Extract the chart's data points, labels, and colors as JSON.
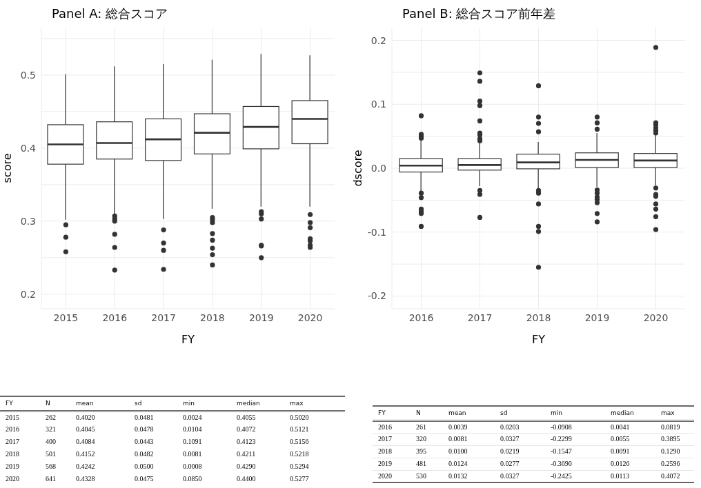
{
  "chart_data": [
    {
      "type": "box",
      "title": "Panel A: 総合スコア",
      "xlabel": "FY",
      "ylabel": "score",
      "color": "#333333",
      "grid": true,
      "categories": [
        "2015",
        "2016",
        "2017",
        "2018",
        "2019",
        "2020"
      ],
      "ylim": [
        0.18,
        0.565
      ],
      "yticks": [
        0.2,
        {
          "value": 0.25,
          "label": null
        },
        0.3,
        {
          "value": 0.35,
          "label": null
        },
        0.4,
        {
          "value": 0.45,
          "label": null
        },
        0.5,
        {
          "value": 0.55,
          "label": null
        }
      ],
      "boxes": [
        {
          "low": 0.302,
          "q1": 0.378,
          "median": 0.405,
          "q3": 0.432,
          "high": 0.501,
          "outliers": [
            0.295,
            0.278,
            0.258
          ]
        },
        {
          "low": 0.31,
          "q1": 0.385,
          "median": 0.407,
          "q3": 0.436,
          "high": 0.512,
          "outliers": [
            0.307,
            0.303,
            0.3,
            0.282,
            0.264,
            0.233
          ]
        },
        {
          "low": 0.303,
          "q1": 0.383,
          "median": 0.412,
          "q3": 0.44,
          "high": 0.515,
          "outliers": [
            0.288,
            0.27,
            0.26,
            0.234
          ]
        },
        {
          "low": 0.317,
          "q1": 0.392,
          "median": 0.421,
          "q3": 0.447,
          "high": 0.521,
          "outliers": [
            0.305,
            0.302,
            0.298,
            0.283,
            0.274,
            0.263,
            0.254,
            0.24
          ]
        },
        {
          "low": 0.32,
          "q1": 0.399,
          "median": 0.429,
          "q3": 0.457,
          "high": 0.529,
          "outliers": [
            0.313,
            0.31,
            0.303,
            0.267,
            0.266,
            0.25
          ]
        },
        {
          "low": 0.32,
          "q1": 0.406,
          "median": 0.44,
          "q3": 0.465,
          "high": 0.527,
          "outliers": [
            0.309,
            0.298,
            0.291,
            0.276,
            0.273,
            0.267,
            0.264
          ]
        }
      ],
      "annotations": [
        "FY",
        "N",
        "mean",
        "sd",
        "min",
        "median",
        "max",
        "2015",
        "262",
        "0.4020",
        "0.0481",
        "0.0024",
        "0.4055",
        "0.5020",
        "2016",
        "321",
        "0.4045",
        "0.0478",
        "0.0104",
        "0.4072",
        "0.5121",
        "2017",
        "400",
        "0.4084",
        "0.0443",
        "0.1091",
        "0.4123",
        "0.5156",
        "2018",
        "501",
        "0.4152",
        "0.0482",
        "0.0081",
        "0.4211",
        "0.5218",
        "2019",
        "568",
        "0.4242",
        "0.0500",
        "0.0008",
        "0.4290",
        "0.5294",
        "2020",
        "641",
        "0.4328",
        "0.0475",
        "0.0850",
        "0.4400",
        "0.5277"
      ]
    },
    {
      "type": "box",
      "title": "Panel B: 総合スコア前年差",
      "xlabel": "FY",
      "ylabel": "dscore",
      "color": "#333333",
      "grid": true,
      "categories": [
        "2016",
        "2017",
        "2018",
        "2019",
        "2020"
      ],
      "ylim": [
        -0.22,
        0.22
      ],
      "yticks": [
        -0.2,
        {
          "value": -0.15,
          "label": null
        },
        -0.1,
        {
          "value": -0.05,
          "label": null
        },
        {
          "value": 0,
          "label": "0.0"
        },
        {
          "value": 0.05,
          "label": null
        },
        0.1,
        {
          "value": 0.15,
          "label": null
        },
        0.2
      ],
      "boxes": [
        {
          "low": -0.038,
          "q1": -0.006,
          "median": 0.004,
          "q3": 0.015,
          "high": 0.046,
          "outliers": [
            0.082,
            0.053,
            0.05,
            0.047,
            -0.039,
            -0.046,
            -0.064,
            -0.068,
            -0.071,
            -0.091
          ]
        },
        {
          "low": -0.028,
          "q1": -0.003,
          "median": 0.005,
          "q3": 0.015,
          "high": 0.041,
          "outliers": [
            0.149,
            0.136,
            0.105,
            0.098,
            0.074,
            0.055,
            0.052,
            0.046,
            0.043,
            -0.035,
            -0.041,
            -0.077
          ]
        },
        {
          "low": -0.033,
          "q1": -0.001,
          "median": 0.009,
          "q3": 0.022,
          "high": 0.041,
          "outliers": [
            0.129,
            0.08,
            0.07,
            0.057,
            -0.035,
            -0.039,
            -0.056,
            -0.091,
            -0.099,
            -0.155
          ]
        },
        {
          "low": -0.029,
          "q1": 0.001,
          "median": 0.013,
          "q3": 0.024,
          "high": 0.055,
          "outliers": [
            0.08,
            0.071,
            0.061,
            -0.034,
            -0.039,
            -0.045,
            -0.049,
            -0.054,
            -0.071,
            -0.084
          ]
        },
        {
          "low": -0.027,
          "q1": 0.001,
          "median": 0.012,
          "q3": 0.023,
          "high": 0.052,
          "outliers": [
            0.189,
            0.071,
            0.068,
            0.063,
            0.059,
            0.055,
            -0.031,
            -0.041,
            -0.044,
            -0.056,
            -0.064,
            -0.076,
            -0.096
          ]
        }
      ],
      "annotations": [
        "FY",
        "N",
        "mean",
        "sd",
        "min",
        "median",
        "max",
        "2016",
        "261",
        "0.0039",
        "0.0203",
        "-0.0908",
        "0.0041",
        "0.0819",
        "2017",
        "320",
        "0.0081",
        "0.0327",
        "-0.2299",
        "0.0055",
        "0.3895",
        "2018",
        "395",
        "0.0100",
        "0.0219",
        "-0.1547",
        "0.0091",
        "0.1290",
        "2019",
        "481",
        "0.0124",
        "0.0277",
        "-0.3690",
        "0.0126",
        "0.2596",
        "2020",
        "530",
        "0.0132",
        "0.0327",
        "-0.2425",
        "0.0113",
        "0.4072"
      ]
    }
  ]
}
